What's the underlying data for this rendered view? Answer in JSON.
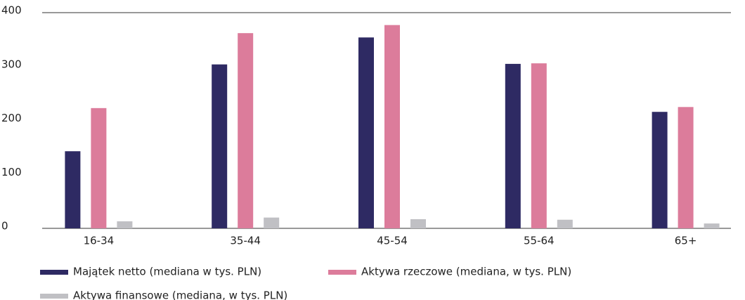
{
  "chart_data": {
    "type": "bar",
    "categories": [
      "16-34",
      "35-44",
      "45-54",
      "55-64",
      "65+"
    ],
    "series": [
      {
        "name": "Majątek netto (mediana w tys. PLN)",
        "color": "#2e2a63",
        "values": [
          143,
          304,
          354,
          305,
          216
        ]
      },
      {
        "name": "Aktywa rzeczowe (mediana, w tys. PLN)",
        "color": "#dc7c9b",
        "values": [
          223,
          362,
          377,
          306,
          225
        ]
      },
      {
        "name": "Aktywa finansowe (mediana, w tys. PLN)",
        "color": "#c0c0c4",
        "values": [
          13,
          20,
          17,
          16,
          9
        ]
      }
    ],
    "ylim": [
      0,
      400
    ],
    "yticks": [
      0,
      100,
      200,
      300,
      400
    ],
    "grid": false
  }
}
